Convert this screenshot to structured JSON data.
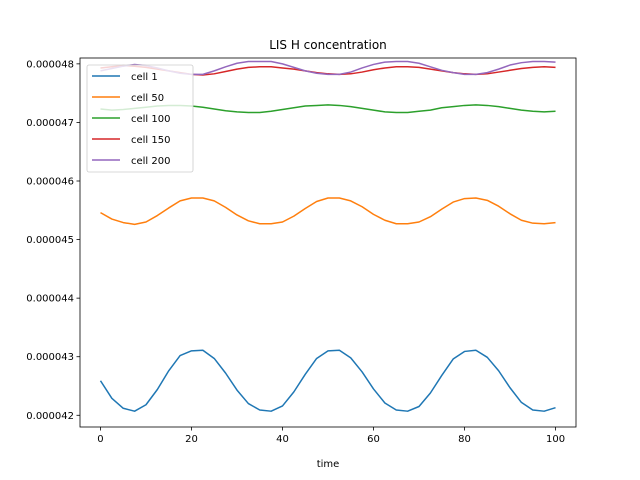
{
  "chart_data": {
    "type": "line",
    "title": "LIS H concentration",
    "xlabel": "time",
    "ylabel": "",
    "xlim": [
      -4.5,
      104.5
    ],
    "ylim": [
      4.18e-05,
      4.81e-05
    ],
    "xticks": [
      0,
      20,
      40,
      60,
      80,
      100
    ],
    "yticks": [
      4.2e-05,
      4.3e-05,
      4.4e-05,
      4.5e-05,
      4.6e-05,
      4.7e-05,
      4.8e-05
    ],
    "ytick_labels": [
      "0.000042",
      "0.000043",
      "0.000044",
      "0.000045",
      "0.000046",
      "0.000047",
      "0.000048"
    ],
    "grid": false,
    "legend_position": "top-left",
    "x": [
      0,
      2.5,
      5,
      7.5,
      10,
      12.5,
      15,
      17.5,
      20,
      22.5,
      25,
      27.5,
      30,
      32.5,
      35,
      37.5,
      40,
      42.5,
      45,
      47.5,
      50,
      52.5,
      55,
      57.5,
      60,
      62.5,
      65,
      67.5,
      70,
      72.5,
      75,
      77.5,
      80,
      82.5,
      85,
      87.5,
      90,
      92.5,
      95,
      97.5,
      100
    ],
    "series": [
      {
        "name": "cell 1",
        "color": "#1f77b4",
        "values": [
          4.259e-05,
          4.229e-05,
          4.212e-05,
          4.207e-05,
          4.218e-05,
          4.244e-05,
          4.276e-05,
          4.302e-05,
          4.31e-05,
          4.311e-05,
          4.297e-05,
          4.272e-05,
          4.243e-05,
          4.22e-05,
          4.209e-05,
          4.207e-05,
          4.216e-05,
          4.24e-05,
          4.27e-05,
          4.297e-05,
          4.31e-05,
          4.311e-05,
          4.298e-05,
          4.274e-05,
          4.245e-05,
          4.221e-05,
          4.209e-05,
          4.207e-05,
          4.215e-05,
          4.238e-05,
          4.268e-05,
          4.296e-05,
          4.309e-05,
          4.311e-05,
          4.299e-05,
          4.276e-05,
          4.247e-05,
          4.222e-05,
          4.209e-05,
          4.207e-05,
          4.213e-05
        ]
      },
      {
        "name": "cell 50",
        "color": "#ff7f0e",
        "values": [
          4.546e-05,
          4.535e-05,
          4.529e-05,
          4.526e-05,
          4.53e-05,
          4.541e-05,
          4.554e-05,
          4.566e-05,
          4.571e-05,
          4.571e-05,
          4.566e-05,
          4.555e-05,
          4.542e-05,
          4.532e-05,
          4.527e-05,
          4.527e-05,
          4.53e-05,
          4.54e-05,
          4.553e-05,
          4.565e-05,
          4.571e-05,
          4.571e-05,
          4.566e-05,
          4.556e-05,
          4.543e-05,
          4.533e-05,
          4.527e-05,
          4.527e-05,
          4.53e-05,
          4.539e-05,
          4.552e-05,
          4.564e-05,
          4.57e-05,
          4.571e-05,
          4.567e-05,
          4.557e-05,
          4.544e-05,
          4.533e-05,
          4.528e-05,
          4.527e-05,
          4.529e-05
        ]
      },
      {
        "name": "cell 100",
        "color": "#2ca02c",
        "values": [
          4.723e-05,
          4.721e-05,
          4.722e-05,
          4.724e-05,
          4.726e-05,
          4.728e-05,
          4.729e-05,
          4.729e-05,
          4.728e-05,
          4.726e-05,
          4.723e-05,
          4.72e-05,
          4.718e-05,
          4.717e-05,
          4.717e-05,
          4.719e-05,
          4.722e-05,
          4.725e-05,
          4.728e-05,
          4.729e-05,
          4.73e-05,
          4.729e-05,
          4.727e-05,
          4.724e-05,
          4.721e-05,
          4.718e-05,
          4.717e-05,
          4.717e-05,
          4.719e-05,
          4.721e-05,
          4.725e-05,
          4.727e-05,
          4.729e-05,
          4.73e-05,
          4.729e-05,
          4.727e-05,
          4.724e-05,
          4.721e-05,
          4.719e-05,
          4.718e-05,
          4.719e-05
        ]
      },
      {
        "name": "cell 150",
        "color": "#d62728",
        "values": [
          4.793e-05,
          4.795e-05,
          4.797e-05,
          4.796e-05,
          4.794e-05,
          4.791e-05,
          4.788e-05,
          4.785e-05,
          4.782e-05,
          4.781e-05,
          4.783e-05,
          4.787e-05,
          4.791e-05,
          4.794e-05,
          4.795e-05,
          4.795e-05,
          4.793e-05,
          4.791e-05,
          4.788e-05,
          4.785e-05,
          4.783e-05,
          4.782e-05,
          4.783e-05,
          4.786e-05,
          4.79e-05,
          4.793e-05,
          4.795e-05,
          4.795e-05,
          4.794e-05,
          4.791e-05,
          4.788e-05,
          4.785e-05,
          4.783e-05,
          4.782e-05,
          4.783e-05,
          4.786e-05,
          4.789e-05,
          4.792e-05,
          4.794e-05,
          4.795e-05,
          4.794e-05
        ]
      },
      {
        "name": "cell 200",
        "color": "#9467bd",
        "values": [
          4.788e-05,
          4.792e-05,
          4.796e-05,
          4.799e-05,
          4.797e-05,
          4.793e-05,
          4.788e-05,
          4.784e-05,
          4.782e-05,
          4.782e-05,
          4.788e-05,
          4.795e-05,
          4.801e-05,
          4.804e-05,
          4.804e-05,
          4.804e-05,
          4.8e-05,
          4.794e-05,
          4.788e-05,
          4.784e-05,
          4.782e-05,
          4.782e-05,
          4.786e-05,
          4.793e-05,
          4.799e-05,
          4.803e-05,
          4.804e-05,
          4.804e-05,
          4.801e-05,
          4.795e-05,
          4.789e-05,
          4.785e-05,
          4.782e-05,
          4.782e-05,
          4.785e-05,
          4.791e-05,
          4.798e-05,
          4.802e-05,
          4.804e-05,
          4.804e-05,
          4.803e-05
        ]
      }
    ]
  }
}
